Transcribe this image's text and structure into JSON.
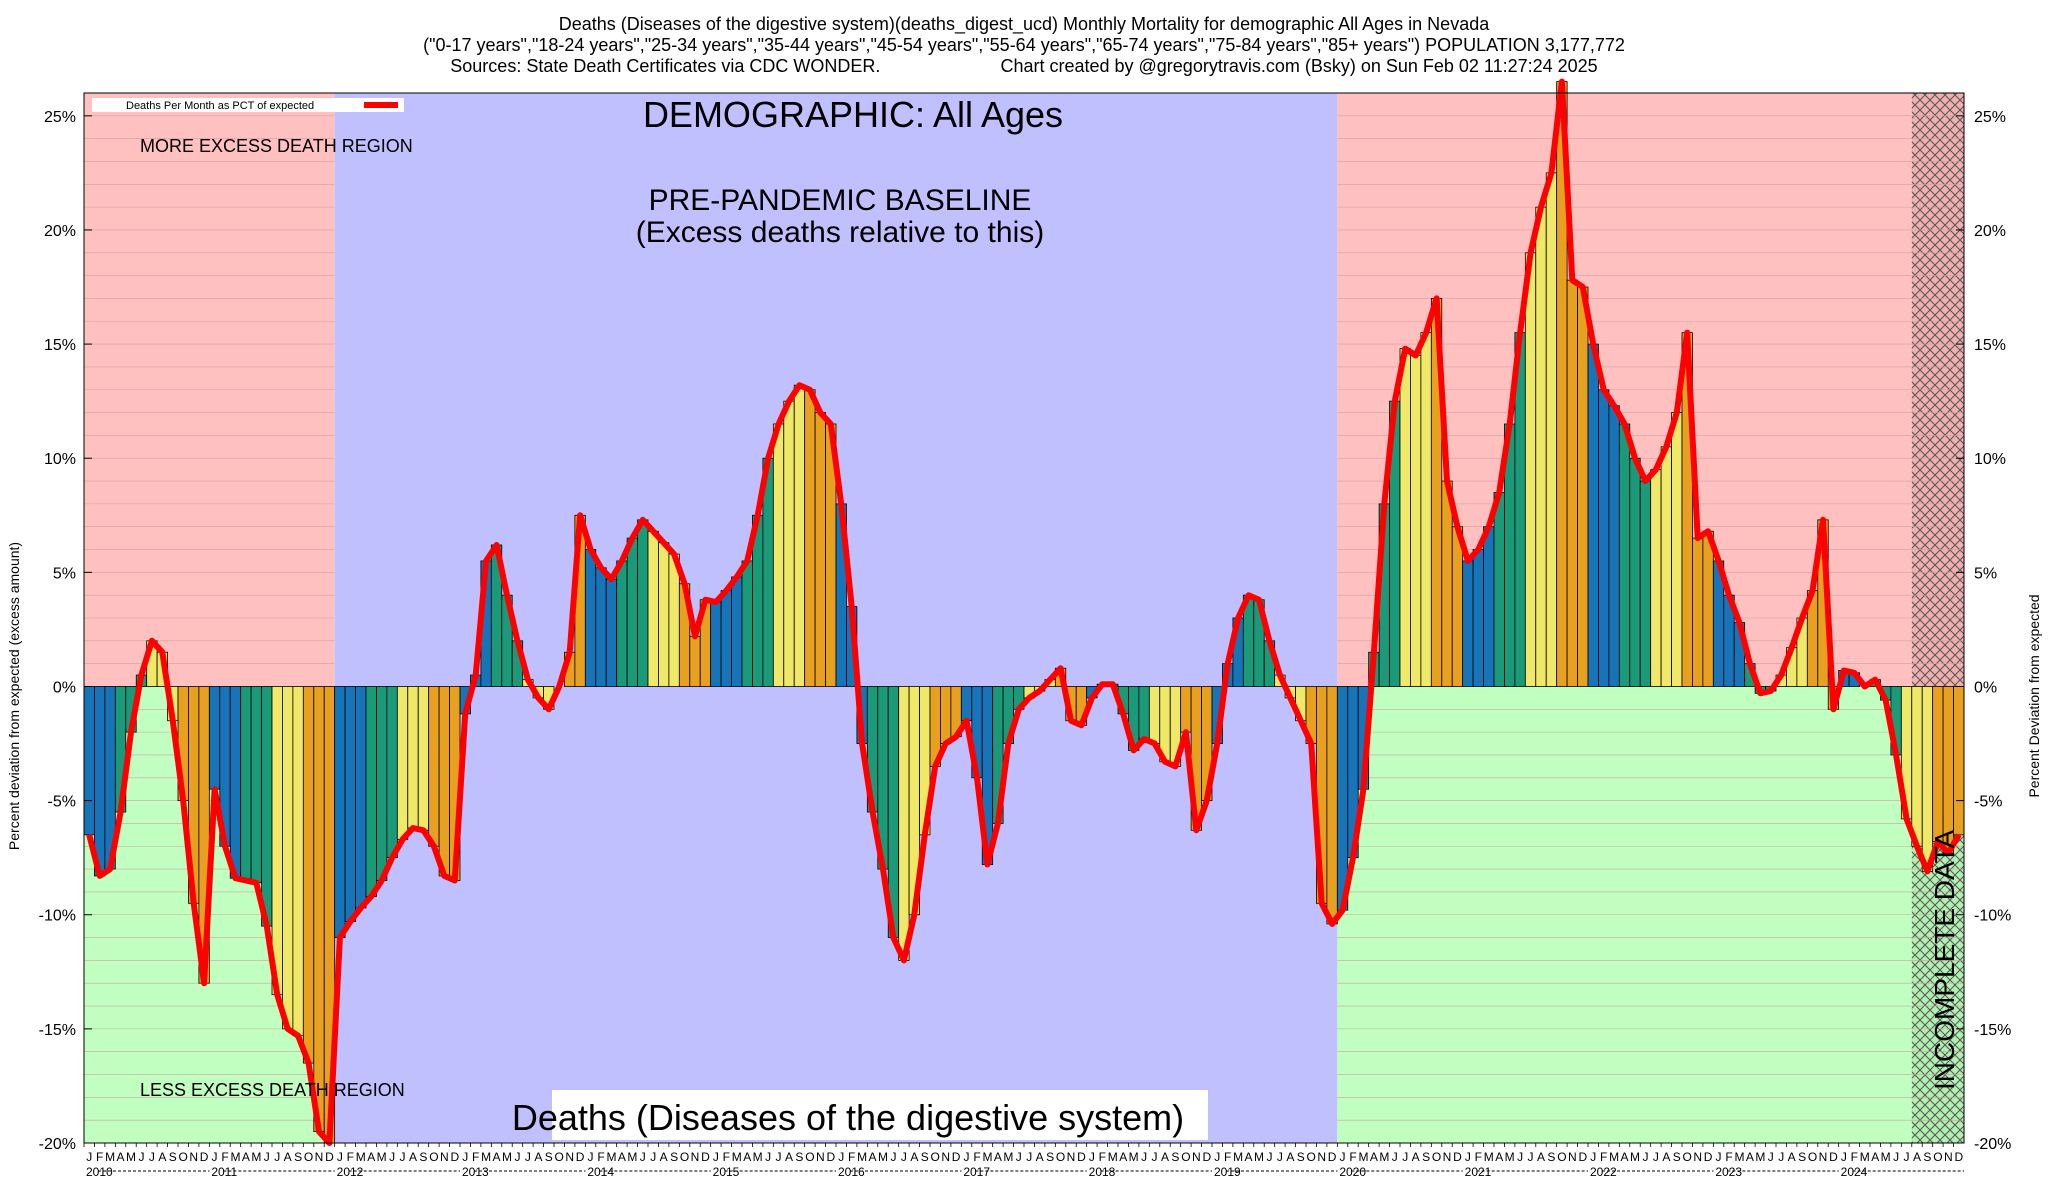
{
  "header": {
    "line1": "Deaths (Diseases of the digestive system)(deaths_digest_ucd) Monthly Mortality for demographic All Ages in Nevada",
    "line2": "(\"0-17 years\",\"18-24 years\",\"25-34 years\",\"35-44 years\",\"45-54 years\",\"55-64 years\",\"65-74 years\",\"75-84 years\",\"85+ years\") POPULATION 3,177,772",
    "line3_left": "Sources: State Death Certificates via CDC WONDER.",
    "line3_right": "Chart created by @gregorytravis.com (Bsky) on Sun Feb 02 11:27:24 2025"
  },
  "colors": {
    "excess_region": "#ffc0c0",
    "less_region": "#c0ffc0",
    "baseline_region": "#c0c0ff",
    "line": "#ff0000",
    "bar_palette": [
      "#1874b8",
      "#1a9a78",
      "#f0e868",
      "#e8a020"
    ]
  },
  "chart_data": {
    "type": "bar",
    "title": "DEMOGRAPHIC: All Ages",
    "subtitle": "Deaths (Diseases of the digestive system)",
    "ylabel_left": "Percent deviation from expected (excess amount)",
    "ylabel_right": "Percent Deviation from expected",
    "ylim": [
      -20,
      26
    ],
    "yticks": [
      -20,
      -15,
      -10,
      -5,
      0,
      5,
      10,
      15,
      20,
      25
    ],
    "ytick_labels": [
      "-20%",
      "-15%",
      "-10%",
      "-5%",
      "0%",
      "5%",
      "10%",
      "15%",
      "20%",
      "25%"
    ],
    "legend": {
      "label": "Deaths Per Month as PCT of expected",
      "placement": "top-left"
    },
    "annotations": {
      "more": "MORE EXCESS DEATH REGION",
      "less": "LESS EXCESS DEATH REGION",
      "baseline_title": "PRE-PANDEMIC BASELINE",
      "baseline_sub": "(Excess deaths relative to this)",
      "incomplete": "INCOMPLETE DATA"
    },
    "baseline_period": [
      "2012-01",
      "2019-12"
    ],
    "incomplete_from": "2024-08",
    "month_letters": [
      "J",
      "F",
      "M",
      "A",
      "M",
      "J",
      "J",
      "A",
      "S",
      "O",
      "N",
      "D"
    ],
    "years": [
      "2010",
      "2011",
      "2012",
      "2013",
      "2014",
      "2015",
      "2016",
      "2017",
      "2018",
      "2019",
      "2020",
      "2021",
      "2022",
      "2023",
      "2024"
    ],
    "values": [
      -6.5,
      -8.3,
      -8.0,
      -5.5,
      -2.0,
      0.5,
      2.0,
      1.5,
      -1.5,
      -5.0,
      -9.5,
      -13.0,
      -4.5,
      -7.0,
      -8.4,
      -8.5,
      -8.6,
      -10.5,
      -13.5,
      -15.0,
      -15.3,
      -16.5,
      -19.5,
      -20.0,
      -11.0,
      -10.3,
      -9.7,
      -9.2,
      -8.5,
      -7.5,
      -6.7,
      -6.2,
      -6.3,
      -7.0,
      -8.3,
      -8.5,
      -1.2,
      0.5,
      5.5,
      6.2,
      4.0,
      2.0,
      0.3,
      -0.5,
      -1.0,
      0.0,
      1.5,
      7.5,
      6.0,
      5.2,
      4.7,
      5.5,
      6.5,
      7.3,
      6.8,
      6.3,
      5.8,
      4.5,
      2.2,
      3.8,
      3.7,
      4.2,
      4.8,
      5.5,
      7.5,
      10.0,
      11.5,
      12.5,
      13.2,
      13.0,
      12.0,
      11.5,
      8.0,
      3.5,
      -2.5,
      -5.5,
      -8.0,
      -11.0,
      -12.0,
      -10.0,
      -6.5,
      -3.5,
      -2.5,
      -2.2,
      -1.5,
      -4.0,
      -7.8,
      -6.0,
      -2.5,
      -1.0,
      -0.5,
      -0.2,
      0.3,
      0.8,
      -1.5,
      -1.7,
      -0.5,
      0.1,
      0.1,
      -1.2,
      -2.8,
      -2.3,
      -2.5,
      -3.3,
      -3.5,
      -2.0,
      -6.3,
      -5.0,
      -2.5,
      1.0,
      3.0,
      4.0,
      3.8,
      2.0,
      0.5,
      -0.5,
      -1.5,
      -2.5,
      -9.5,
      -10.4,
      -9.8,
      -7.5,
      -4.5,
      1.5,
      8.0,
      12.5,
      14.8,
      14.5,
      15.5,
      17.0,
      9.0,
      7.0,
      5.5,
      6.0,
      7.0,
      8.5,
      11.5,
      15.5,
      19.0,
      21.0,
      22.5,
      26.5,
      17.8,
      17.5,
      15.0,
      13.0,
      12.3,
      11.5,
      10.0,
      9.0,
      9.5,
      10.5,
      12.0,
      15.5,
      6.5,
      6.8,
      5.5,
      4.0,
      2.8,
      1.0,
      -0.3,
      -0.2,
      0.5,
      1.7,
      3.0,
      4.2,
      7.3,
      -1.0,
      0.7,
      0.6,
      0.0,
      0.3,
      -0.6,
      -3.0,
      -5.8,
      -7.0,
      -8.1,
      -6.8,
      -7.3,
      -6.5
    ]
  }
}
